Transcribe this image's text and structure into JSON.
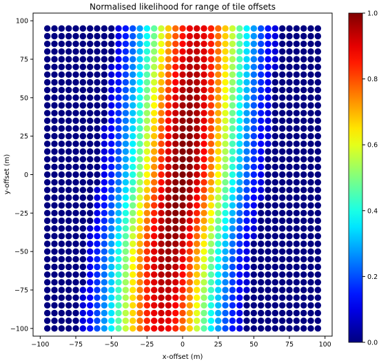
{
  "chart_data": {
    "type": "scatter",
    "title": "Normalised likelihood for range of tile offsets",
    "xlabel": "x-offset (m)",
    "ylabel": "y-offset (m)",
    "xlim": [
      -105,
      105
    ],
    "ylim": [
      -105,
      105
    ],
    "x_ticks": [
      -100,
      -75,
      -50,
      -25,
      0,
      25,
      50,
      75,
      100
    ],
    "y_ticks": [
      -100,
      -75,
      -50,
      -25,
      0,
      25,
      50,
      75,
      100
    ],
    "x_tick_labels": [
      "−100",
      "−75",
      "−50",
      "−25",
      "0",
      "25",
      "50",
      "75",
      "100"
    ],
    "y_tick_labels": [
      "−100",
      "−75",
      "−50",
      "−25",
      "0",
      "25",
      "50",
      "75",
      "100"
    ],
    "grid": false,
    "point_grid": {
      "x_start": -95,
      "x_end": 95,
      "y_start": -100,
      "y_end": 95,
      "step": 5
    },
    "value_model": {
      "description_of_values": "normalised likelihood at each (x, y) offset; Gaussian band along a tilted ridge",
      "ridge_center_x_at_y": [
        [
          -100,
          -15
        ],
        [
          -50,
          -10
        ],
        [
          0,
          0
        ],
        [
          50,
          5
        ],
        [
          95,
          10
        ]
      ],
      "sigma_x": 26,
      "sigma_y": 220,
      "peak": 1.0,
      "cutoff": 0.08
    },
    "colorbar": {
      "colormap": "jet",
      "min": 0.0,
      "max": 1.0,
      "ticks": [
        0.0,
        0.2,
        0.4,
        0.6,
        0.8,
        1.0
      ],
      "tick_labels": [
        "0.0",
        "0.2",
        "0.4",
        "0.6",
        "0.8",
        "1.0"
      ]
    }
  }
}
